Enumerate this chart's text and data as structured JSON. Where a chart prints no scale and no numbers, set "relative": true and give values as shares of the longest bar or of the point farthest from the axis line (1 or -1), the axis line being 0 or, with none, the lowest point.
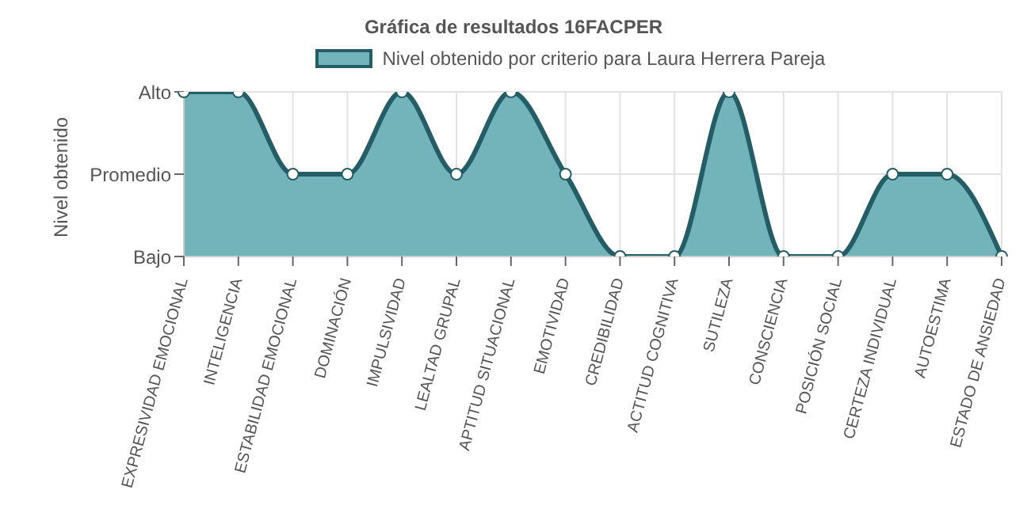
{
  "chart_data": {
    "type": "area",
    "title": "Gráfica de resultados 16FACPER",
    "ylabel": "Nivel obtenido",
    "categories": [
      "EXPRESIVIDAD EMOCIONAL",
      "INTELIGENCIA",
      "ESTABILIDAD EMOCIONAL",
      "DOMINACIÓN",
      "IMPULSIVIDAD",
      "LEALTAD GRUPAL",
      "APTITUD SITUACIONAL",
      "EMOTIVIDAD",
      "CREDIBILIDAD",
      "ACTITUD COGNITIVA",
      "SUTILEZA",
      "CONSCIENCIA",
      "POSICIÓN SOCIAL",
      "CERTEZA INDIVIDUAL",
      "AUTOESTIMA",
      "ESTADO DE ANSIEDAD"
    ],
    "series": [
      {
        "name": "Nivel obtenido por criterio para Laura Herrera Pareja",
        "color": "#72b4b9",
        "values": [
          1,
          1,
          0.5,
          0.5,
          1,
          0.5,
          1,
          0.5,
          0,
          0,
          1,
          0,
          0,
          0.5,
          0.5,
          0
        ]
      }
    ],
    "relative": true,
    "y_categories": [
      "Alto",
      "Promedio",
      "Bajo"
    ],
    "grid": true,
    "legend": "top",
    "marker": "circle"
  }
}
